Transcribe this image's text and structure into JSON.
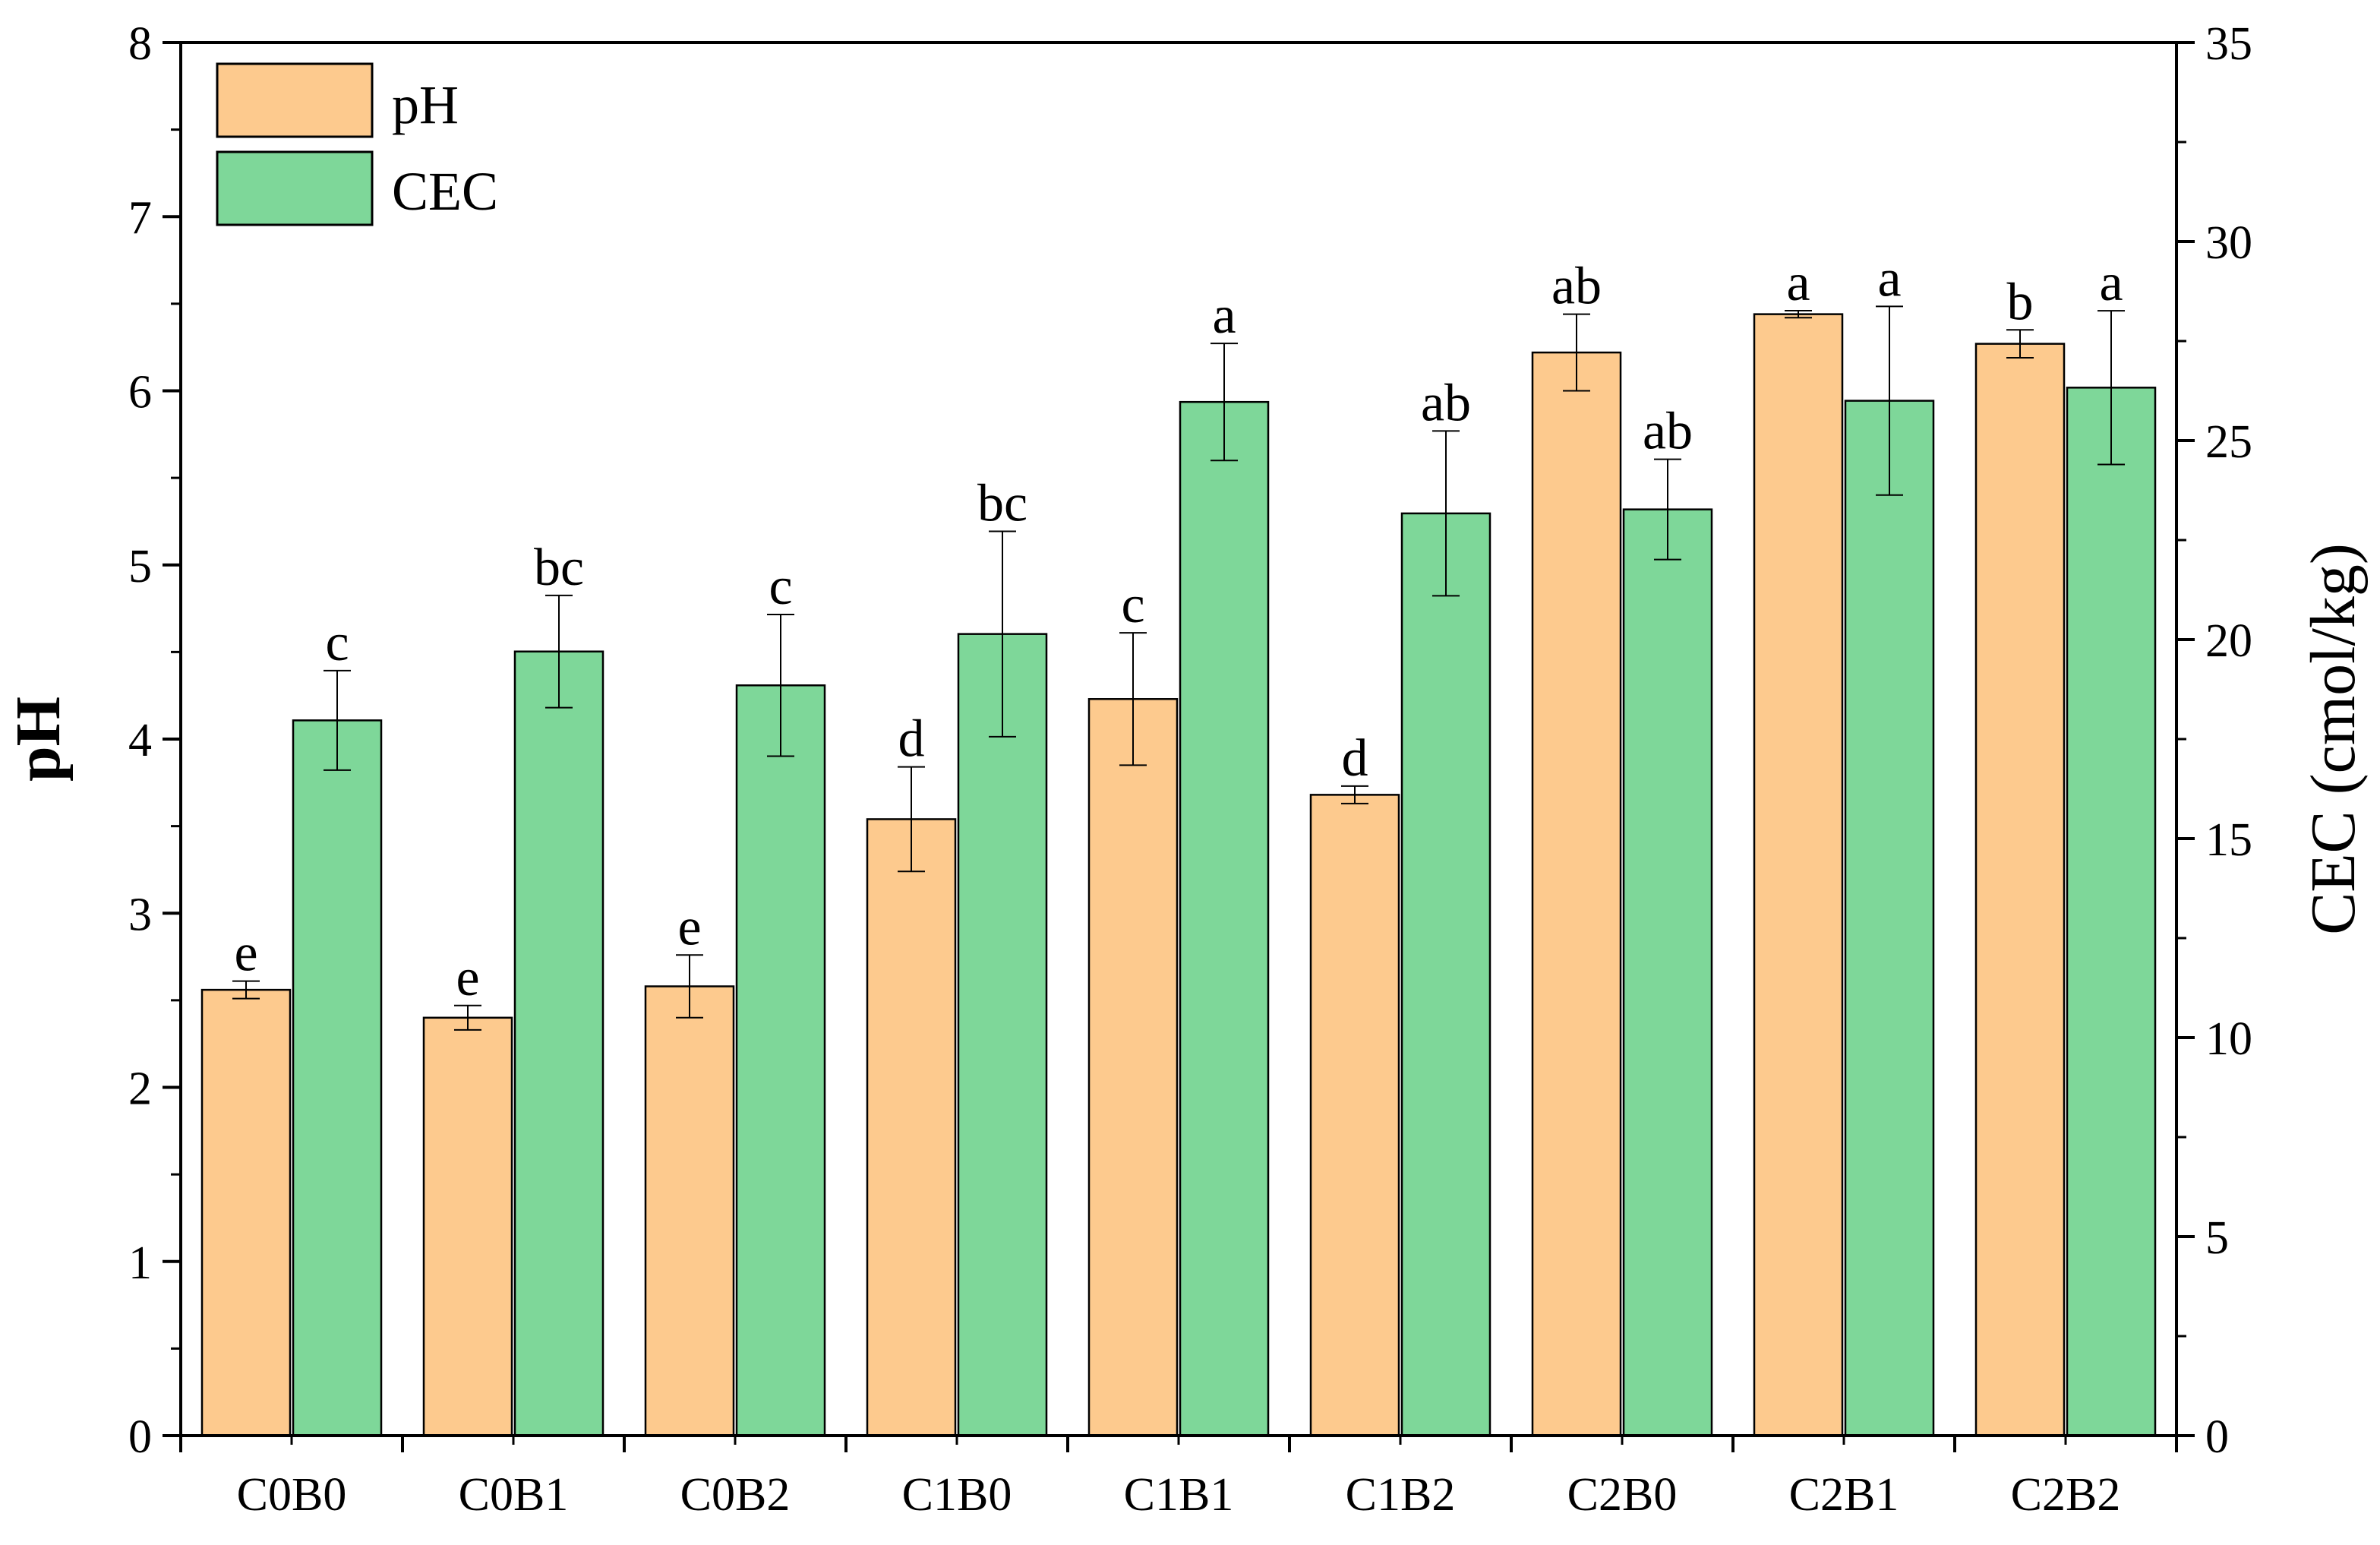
{
  "chart_data": {
    "type": "bar",
    "categories": [
      "C0B0",
      "C0B1",
      "C0B2",
      "C1B0",
      "C1B1",
      "C1B2",
      "C2B0",
      "C2B1",
      "C2B2"
    ],
    "series": [
      {
        "name": "pH",
        "axis": "left",
        "color": "#FDCA8E",
        "values": [
          2.56,
          2.4,
          2.58,
          3.54,
          4.23,
          3.68,
          6.22,
          6.44,
          6.27
        ],
        "errors": [
          0.05,
          0.07,
          0.18,
          0.3,
          0.38,
          0.05,
          0.22,
          0.02,
          0.08
        ],
        "labels": [
          "e",
          "e",
          "e",
          "d",
          "c",
          "d",
          "ab",
          "a",
          "b"
        ]
      },
      {
        "name": "CEC",
        "axis": "right",
        "color": "#7ED799",
        "values": [
          17.97,
          19.7,
          18.85,
          20.14,
          25.97,
          23.17,
          23.27,
          26.0,
          26.33
        ],
        "errors": [
          1.25,
          1.41,
          1.78,
          2.58,
          1.47,
          2.07,
          1.26,
          2.37,
          1.93
        ],
        "labels": [
          "c",
          "bc",
          "c",
          "bc",
          "a",
          "ab",
          "ab",
          "a",
          "a"
        ]
      }
    ],
    "ylabel": "pH",
    "ylim": [
      0,
      8
    ],
    "yticks": [
      "0",
      "1",
      "2",
      "3",
      "4",
      "5",
      "6",
      "7",
      "8"
    ],
    "y2label": "CEC (cmol/kg)",
    "y2lim": [
      0,
      35
    ],
    "y2ticks": [
      "0",
      "5",
      "10",
      "15",
      "20",
      "25",
      "30",
      "35"
    ],
    "legend": {
      "position": "top-left",
      "entries": [
        "pH",
        "CEC"
      ]
    },
    "grid": false
  }
}
